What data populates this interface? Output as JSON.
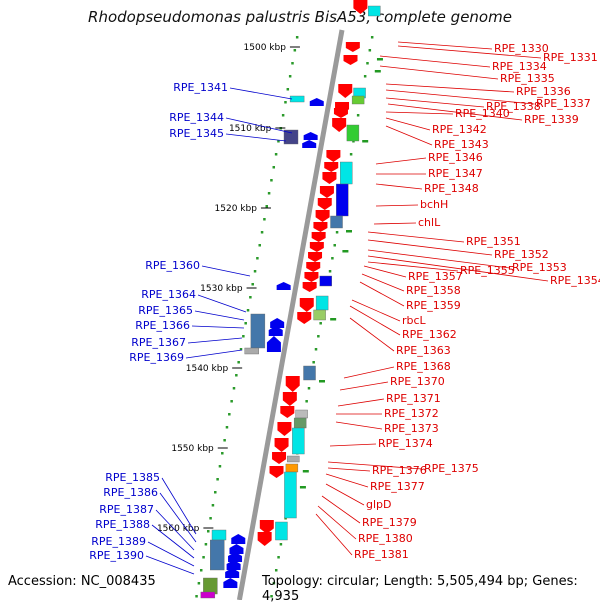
{
  "title": "Rhodopseudomonas palustris BisA53, complete genome",
  "footer": {
    "accession": "Accession: NC_008435",
    "topology": "Topology: circular; Length: 5,505,494 bp; Genes: 4,935"
  },
  "colors": {
    "forward": "#ff0000",
    "reverse": "#0000ee",
    "forward_label": "#dd0000",
    "reverse_label": "#0000cc"
  },
  "scale_ticks": [
    "1500 kbp",
    "1510 kbp",
    "1520 kbp",
    "1530 kbp",
    "1540 kbp",
    "1550 kbp",
    "1560 kbp"
  ],
  "forward_genes": [
    "RPE_1330",
    "RPE_1331",
    "RPE_1334",
    "RPE_1335",
    "RPE_1336",
    "RPE_1337",
    "RPE_1338",
    "RPE_1339",
    "RPE_1340",
    "RPE_1342",
    "RPE_1343",
    "RPE_1346",
    "RPE_1347",
    "RPE_1348",
    "bchH",
    "chlL",
    "RPE_1351",
    "RPE_1352",
    "RPE_1353",
    "RPE_1354",
    "RPE_1355",
    "RPE_1357",
    "RPE_1358",
    "RPE_1359",
    "rbcL",
    "RPE_1362",
    "RPE_1363",
    "RPE_1368",
    "RPE_1370",
    "RPE_1371",
    "RPE_1372",
    "RPE_1373",
    "RPE_1374",
    "RPE_1375",
    "RPE_1376",
    "RPE_1377",
    "glpD",
    "RPE_1379",
    "RPE_1380",
    "RPE_1381"
  ],
  "reverse_genes": [
    "RPE_1341",
    "RPE_1344",
    "RPE_1345",
    "RPE_1360",
    "RPE_1364",
    "RPE_1365",
    "RPE_1366",
    "RPE_1367",
    "RPE_1369",
    "RPE_1385",
    "RPE_1386",
    "RPE_1387",
    "RPE_1388",
    "RPE_1389",
    "RPE_1390"
  ]
}
